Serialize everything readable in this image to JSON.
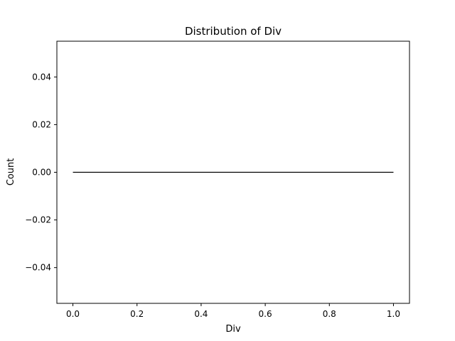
{
  "chart_data": {
    "type": "line",
    "title": "Distribution of Div",
    "xlabel": "Div",
    "ylabel": "Count",
    "xlim": [
      -0.05,
      1.05
    ],
    "ylim": [
      -0.055,
      0.055
    ],
    "xticks": [
      0.0,
      0.2,
      0.4,
      0.6,
      0.8,
      1.0
    ],
    "xtick_labels": [
      "0.0",
      "0.2",
      "0.4",
      "0.6",
      "0.8",
      "1.0"
    ],
    "yticks": [
      -0.04,
      -0.02,
      0.0,
      0.02,
      0.04
    ],
    "ytick_labels": [
      "−0.04",
      "−0.02",
      "0.00",
      "0.02",
      "0.04"
    ],
    "series": [
      {
        "x": [
          0.0,
          1.0
        ],
        "y": [
          0.0,
          0.0
        ],
        "color": "#000000"
      }
    ],
    "grid": false
  }
}
